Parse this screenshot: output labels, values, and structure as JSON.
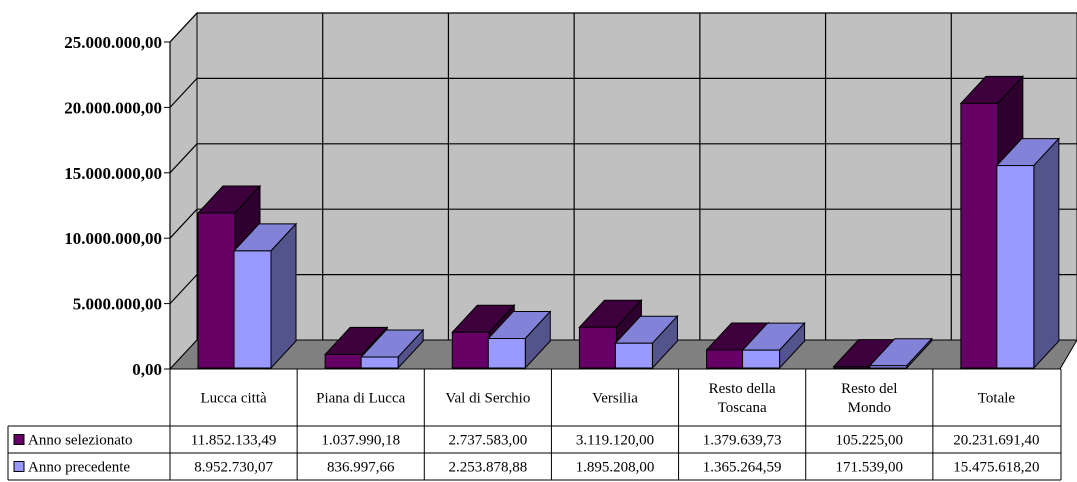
{
  "chart_data": {
    "type": "bar",
    "title": "",
    "xlabel": "",
    "ylabel": "",
    "ylim": [
      0,
      25000000
    ],
    "yticks": [
      "0,00",
      "5.000.000,00",
      "10.000.000,00",
      "15.000.000,00",
      "20.000.000,00",
      "25.000.000,00"
    ],
    "ytick_values": [
      0,
      5000000,
      10000000,
      15000000,
      20000000,
      25000000
    ],
    "categories": [
      [
        "Lucca città"
      ],
      [
        "Piana di Lucca"
      ],
      [
        "Val di Serchio"
      ],
      [
        "Versilia"
      ],
      [
        "Resto  della",
        "Toscana"
      ],
      [
        "Resto del",
        "Mondo"
      ],
      [
        "Totale"
      ]
    ],
    "grid": true,
    "legend": "data-table",
    "series": [
      {
        "name": "Anno selezionato",
        "color": "#660066",
        "values": [
          11852133.49,
          1037990.18,
          2737583.0,
          3119120.0,
          1379639.73,
          105225.0,
          20231691.4
        ],
        "labels": [
          "11.852.133,49",
          "1.037.990,18",
          "2.737.583,00",
          "3.119.120,00",
          "1.379.639,73",
          "105.225,00",
          "20.231.691,40"
        ]
      },
      {
        "name": "Anno precedente",
        "color": "#9999ff",
        "values": [
          8952730.07,
          836997.66,
          2253878.88,
          1895208.0,
          1365264.59,
          171539.0,
          15475618.2
        ],
        "labels": [
          "8.952.730,07",
          "836.997,66",
          "2.253.878,88",
          "1.895.208,00",
          "1.365.264,59",
          "171.539,00",
          "15.475.618,20"
        ]
      }
    ],
    "colors": {
      "wall": "#c0c0c0",
      "floor": "#808080",
      "grid": "#000000"
    }
  }
}
